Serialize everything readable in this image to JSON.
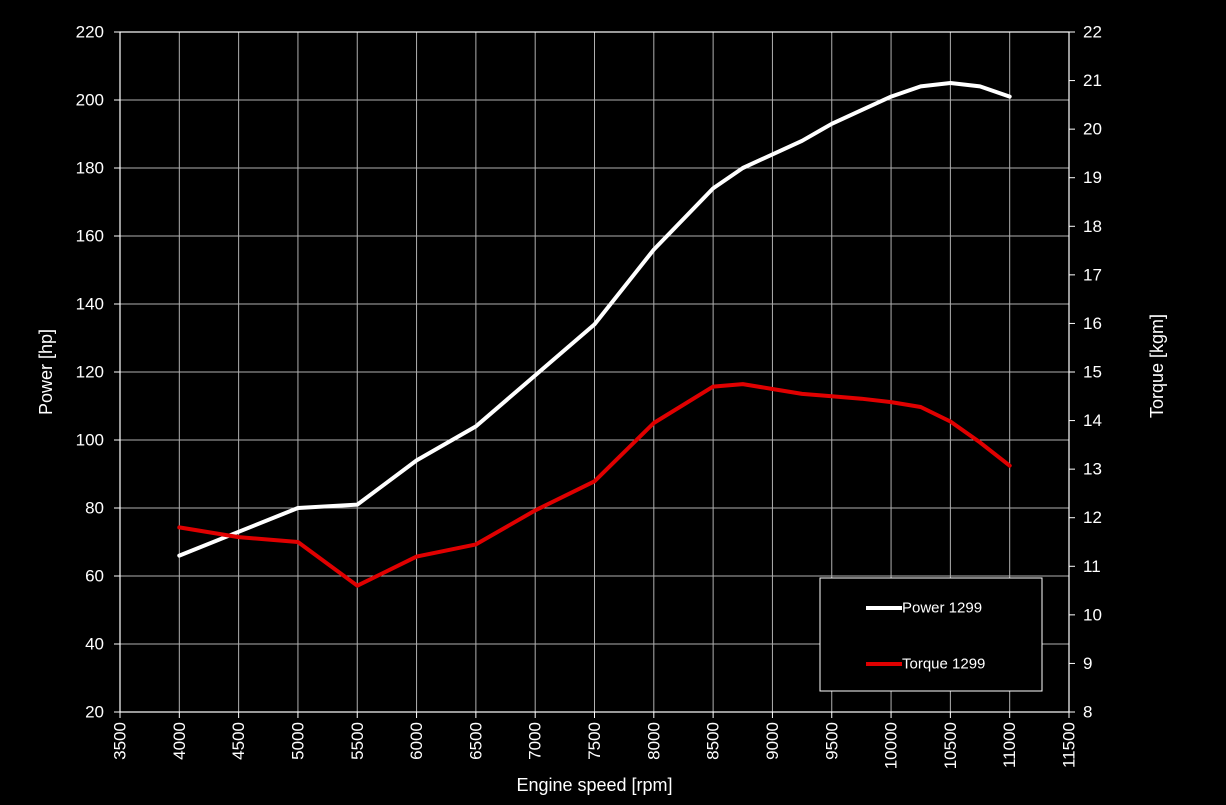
{
  "chart_data": {
    "type": "line",
    "background": "#000000",
    "grid": true,
    "grid_color": "#b0b0b0",
    "legend_position": "bottom-right",
    "xlabel": "Engine speed [rpm]",
    "ylabel": "Power [hp]",
    "y2label": "Torque [kgm]",
    "xlim": [
      3500,
      11500
    ],
    "xticks": [
      3500,
      4000,
      4500,
      5000,
      5500,
      6000,
      6500,
      7000,
      7500,
      8000,
      8500,
      9000,
      9500,
      10000,
      10500,
      11000,
      11500
    ],
    "ylim": [
      20,
      220
    ],
    "yticks": [
      20,
      40,
      60,
      80,
      100,
      120,
      140,
      160,
      180,
      200,
      220
    ],
    "y2lim": [
      8,
      22
    ],
    "y2ticks": [
      8,
      9,
      10,
      11,
      12,
      13,
      14,
      15,
      16,
      17,
      18,
      19,
      20,
      21,
      22
    ],
    "series": [
      {
        "name": "Power 1299",
        "axis": "left",
        "color": "#ffffff",
        "x": [
          4000,
          4500,
          5000,
          5500,
          6000,
          6500,
          7000,
          7500,
          8000,
          8500,
          8750,
          9000,
          9250,
          9500,
          9750,
          10000,
          10250,
          10500,
          10750,
          11000
        ],
        "y": [
          66,
          73,
          80,
          81,
          94,
          104,
          119,
          134,
          156,
          174,
          180,
          184,
          188,
          193,
          197,
          201,
          204,
          205,
          204,
          201
        ]
      },
      {
        "name": "Torque 1299",
        "axis": "right",
        "color": "#e00000",
        "x": [
          4000,
          4500,
          5000,
          5500,
          6000,
          6500,
          7000,
          7500,
          8000,
          8500,
          8750,
          9000,
          9250,
          9500,
          9750,
          10000,
          10250,
          10500,
          10750,
          11000
        ],
        "y": [
          11.8,
          11.6,
          11.5,
          10.6,
          11.2,
          11.45,
          12.15,
          12.75,
          13.95,
          14.7,
          14.75,
          14.65,
          14.55,
          14.5,
          14.45,
          14.38,
          14.28,
          13.98,
          13.55,
          13.07
        ]
      }
    ]
  }
}
